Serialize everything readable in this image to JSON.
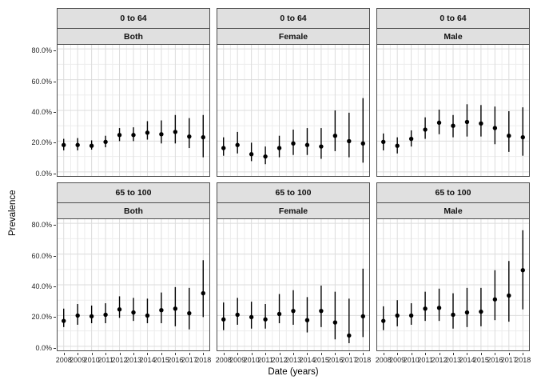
{
  "chart_data": {
    "type": "scatter",
    "subtype": "pointrange-with-error-bars",
    "title": "",
    "xlabel": "Date (years)",
    "ylabel": "Prevalence",
    "x": [
      2008,
      2009,
      2010,
      2011,
      2012,
      2013,
      2014,
      2015,
      2016,
      2017,
      2018
    ],
    "xtick_labels": [
      "2008",
      "2009",
      "2010",
      "2011",
      "2012",
      "2013",
      "2014",
      "2015",
      "2016",
      "2017",
      "2018"
    ],
    "ylim": [
      0,
      80
    ],
    "ytick_values": [
      0,
      20,
      40,
      60,
      80
    ],
    "ytick_labels": [
      "0.0%",
      "20.0%",
      "40.0%",
      "60.0%",
      "80.0%"
    ],
    "grid": "major-and-minor-on",
    "legend_position": "none",
    "facet_rows": [
      "0 to 64",
      "65 to 100"
    ],
    "facet_cols": [
      "Both",
      "Female",
      "Male"
    ],
    "facets": [
      {
        "row": "0 to 64",
        "col": "Both",
        "point": [
          17.5,
          17.5,
          17,
          19.5,
          24,
          24,
          25.5,
          24.5,
          26,
          23,
          22.5
        ],
        "lower": [
          14,
          14,
          14.5,
          16,
          20,
          20,
          21,
          18.5,
          18.5,
          15.5,
          9.5
        ],
        "upper": [
          21.5,
          22,
          20.5,
          23.5,
          28.5,
          29,
          33,
          33.5,
          37,
          35,
          37
        ]
      },
      {
        "row": "0 to 64",
        "col": "Female",
        "point": [
          15.5,
          17.5,
          11.5,
          10,
          15.5,
          18.5,
          17.5,
          16.5,
          23.5,
          20,
          18.5
        ],
        "lower": [
          10.5,
          12,
          7,
          5,
          9.5,
          11,
          11,
          8.5,
          13.5,
          9.5,
          6
        ],
        "upper": [
          22.5,
          26,
          19,
          16.5,
          23.5,
          27.5,
          28.5,
          28.5,
          40,
          38.5,
          48
        ]
      },
      {
        "row": "0 to 64",
        "col": "Male",
        "point": [
          19.5,
          17,
          21.5,
          27.5,
          32,
          30,
          32.5,
          31.5,
          28.5,
          23.5,
          22.5
        ],
        "lower": [
          14,
          12,
          16.5,
          21.5,
          24.5,
          22.5,
          23,
          23,
          18,
          13,
          10.5
        ],
        "upper": [
          25,
          22.5,
          27,
          35.5,
          40.5,
          37,
          44,
          43.5,
          42.5,
          39.5,
          42
        ]
      },
      {
        "row": "65 to 100",
        "col": "Both",
        "point": [
          16.5,
          20,
          19.5,
          20.5,
          24,
          22,
          20,
          23.5,
          24.5,
          21.5,
          34.5
        ],
        "lower": [
          12.5,
          14,
          15,
          15,
          18.5,
          16.5,
          15,
          15,
          13,
          11,
          19
        ],
        "upper": [
          24.5,
          27.5,
          26.5,
          28,
          32.5,
          31.5,
          31,
          35,
          38.5,
          38,
          56
        ]
      },
      {
        "row": "65 to 100",
        "col": "Female",
        "point": [
          17.5,
          20.5,
          19,
          17.5,
          21,
          23,
          17,
          23,
          15.5,
          7,
          19.5
        ],
        "lower": [
          10.5,
          14,
          11.5,
          11.5,
          15,
          14,
          9,
          12.5,
          4.5,
          2,
          6
        ],
        "upper": [
          28.5,
          31.5,
          29,
          27.5,
          34,
          36.5,
          32,
          39.5,
          35.5,
          31,
          50.5
        ]
      },
      {
        "row": "65 to 100",
        "col": "Male",
        "point": [
          16.5,
          20,
          20,
          24.5,
          25,
          20.5,
          22,
          22.5,
          30.5,
          33,
          49.5
        ],
        "lower": [
          10.5,
          13,
          14,
          16.5,
          16.5,
          11.5,
          12.5,
          13,
          17,
          16,
          24
        ],
        "upper": [
          26,
          30,
          28,
          35.5,
          37.5,
          34.5,
          38,
          38,
          49.5,
          55.5,
          75.5
        ]
      }
    ]
  },
  "style": {
    "strip_bg": "#e0e0e0",
    "strip_border": "#4d4d4d",
    "panel_border": "#4d4d4d",
    "grid_major": "#dcdcdc",
    "grid_minor": "#ededed",
    "point_color": "#000000",
    "errorbar_color": "#000000",
    "tick_color": "#333333",
    "tick_label_color": "#262626"
  }
}
